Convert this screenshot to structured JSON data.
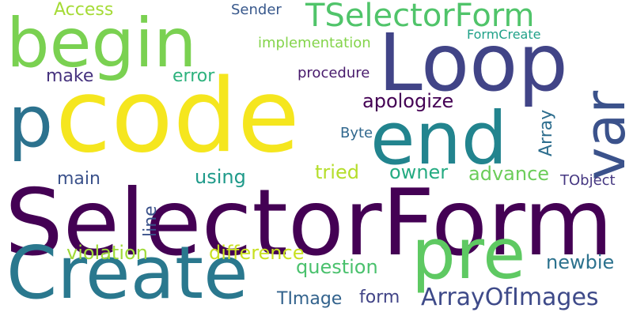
{
  "words": [
    {
      "text": "SelectorForm",
      "color": "#440154"
    },
    {
      "text": "code",
      "color": "#f5e61e"
    },
    {
      "text": "Loop",
      "color": "#414487"
    },
    {
      "text": "begin",
      "color": "#7ad151"
    },
    {
      "text": "end",
      "color": "#22848e"
    },
    {
      "text": "Create",
      "color": "#2a788e"
    },
    {
      "text": "pre",
      "color": "#5ec962"
    },
    {
      "text": "var",
      "color": "#3b528b"
    },
    {
      "text": "p",
      "color": "#2c728e"
    },
    {
      "text": "TSelectorForm",
      "color": "#50c46a"
    },
    {
      "text": "ArrayOfImages",
      "color": "#3e4a89"
    },
    {
      "text": "Access",
      "color": "#a5db36"
    },
    {
      "text": "Sender",
      "color": "#38588c"
    },
    {
      "text": "implementation",
      "color": "#84d44b"
    },
    {
      "text": "FormCreate",
      "color": "#1fa188"
    },
    {
      "text": "make",
      "color": "#46327e"
    },
    {
      "text": "error",
      "color": "#2db27d"
    },
    {
      "text": "procedure",
      "color": "#481a6c"
    },
    {
      "text": "apologize",
      "color": "#440154"
    },
    {
      "text": "Array",
      "color": "#2e6e8e"
    },
    {
      "text": "Byte",
      "color": "#31688e"
    },
    {
      "text": "main",
      "color": "#3b528b"
    },
    {
      "text": "using",
      "color": "#1f9a8a"
    },
    {
      "text": "tried",
      "color": "#b5de2b"
    },
    {
      "text": "owner",
      "color": "#25ab82"
    },
    {
      "text": "advance",
      "color": "#6ccd5a"
    },
    {
      "text": "TObject",
      "color": "#453781"
    },
    {
      "text": "line",
      "color": "#3b528b"
    },
    {
      "text": "violation",
      "color": "#a0da39"
    },
    {
      "text": "difference",
      "color": "#c8e020"
    },
    {
      "text": "question",
      "color": "#4ac16d"
    },
    {
      "text": "newbie",
      "color": "#2c728e"
    },
    {
      "text": "TImage",
      "color": "#33638d"
    },
    {
      "text": "form",
      "color": "#414487"
    }
  ]
}
